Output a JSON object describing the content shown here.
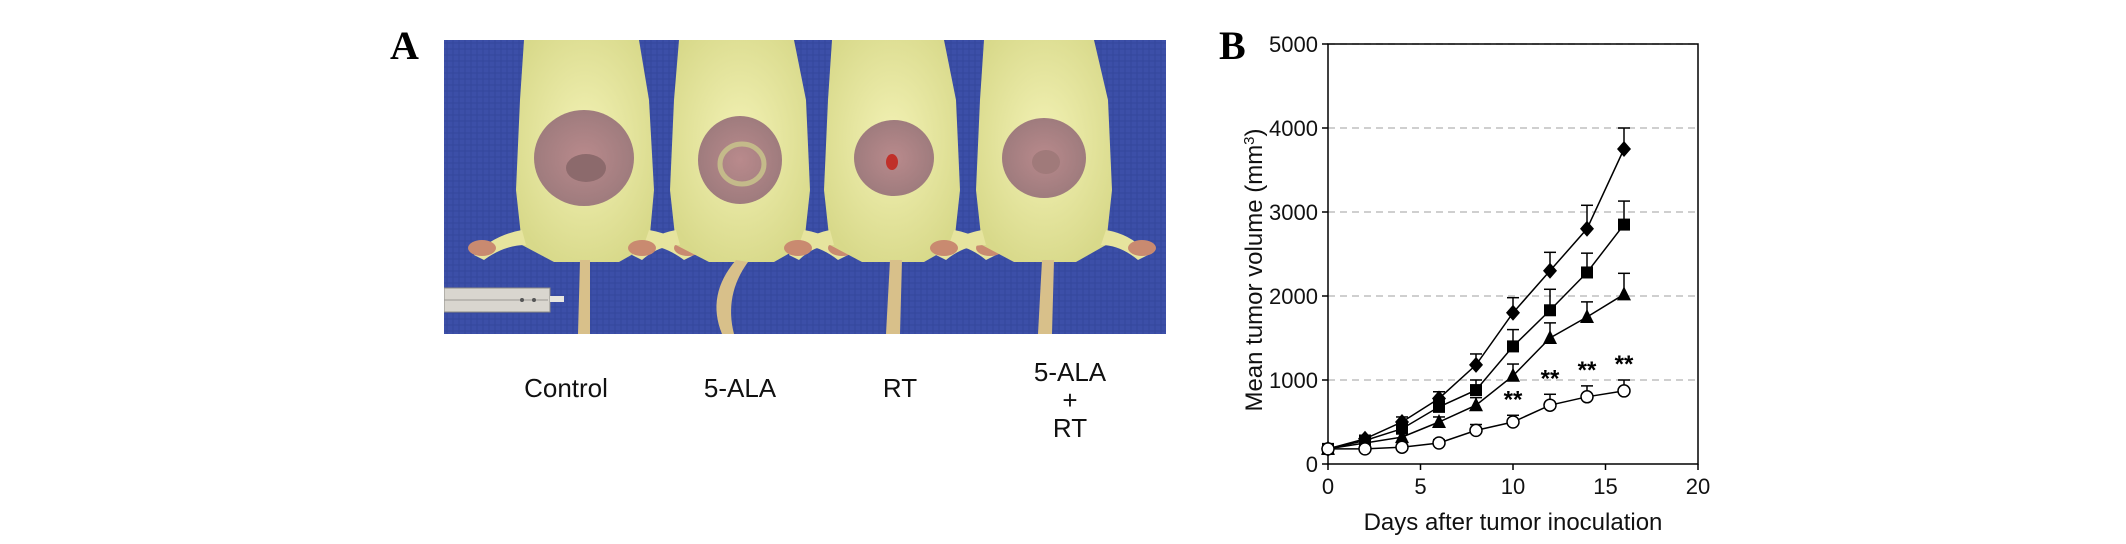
{
  "panel_a": {
    "letter": "A",
    "group_labels": [
      "Control",
      "5-ALA",
      "RT"
    ],
    "combo_label": {
      "line1": "5-ALA",
      "line2": "+",
      "line3": "RT"
    }
  },
  "panel_b": {
    "letter": "B"
  },
  "chart_data": {
    "type": "line",
    "xlabel": "Days after tumor inoculation",
    "ylabel": "Mean tumor volume (mm",
    "ylabel_sup": "3",
    "ylabel_end": ")",
    "xlim": [
      0,
      20
    ],
    "ylim": [
      0,
      5000
    ],
    "xticks": [
      0,
      5,
      10,
      15,
      20
    ],
    "yticks": [
      0,
      1000,
      2000,
      3000,
      4000,
      5000
    ],
    "grid": "horizontal dashed",
    "significance_label": "**",
    "series": [
      {
        "marker": "diamond",
        "x": [
          0,
          2,
          4,
          6,
          8,
          10,
          12,
          14,
          16
        ],
        "values": [
          180,
          300,
          500,
          780,
          1180,
          1800,
          2300,
          2800,
          3750
        ],
        "errors": [
          30,
          40,
          60,
          80,
          130,
          180,
          220,
          280,
          250
        ]
      },
      {
        "marker": "square",
        "x": [
          0,
          2,
          4,
          6,
          8,
          10,
          12,
          14,
          16
        ],
        "values": [
          180,
          280,
          420,
          680,
          880,
          1400,
          1830,
          2280,
          2850
        ],
        "errors": [
          30,
          40,
          50,
          80,
          120,
          200,
          250,
          230,
          280
        ]
      },
      {
        "marker": "triangle",
        "x": [
          0,
          2,
          4,
          6,
          8,
          10,
          12,
          14,
          16
        ],
        "values": [
          180,
          250,
          320,
          500,
          700,
          1050,
          1500,
          1750,
          2020
        ],
        "errors": [
          30,
          40,
          50,
          60,
          90,
          140,
          180,
          180,
          250
        ]
      },
      {
        "marker": "circle-open",
        "x": [
          0,
          2,
          4,
          6,
          8,
          10,
          12,
          14,
          16
        ],
        "values": [
          180,
          180,
          200,
          250,
          400,
          500,
          700,
          800,
          870
        ],
        "errors": [
          30,
          30,
          30,
          40,
          70,
          80,
          130,
          130,
          130
        ]
      }
    ],
    "significant_x": [
      10,
      12,
      14,
      16
    ]
  }
}
